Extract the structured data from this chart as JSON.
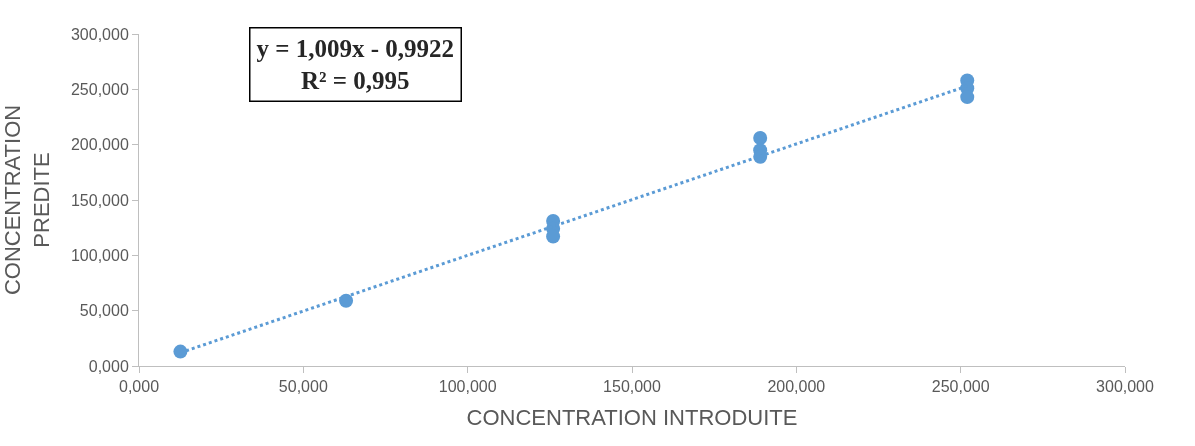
{
  "chart_data": {
    "type": "scatter",
    "xlabel": "CONCENTRATION INTRODUITE",
    "ylabel": "CONCENTRATION\nPREDITE",
    "annotations": [
      "y = 1,009x - 0,9922\nR² = 0,995"
    ],
    "series": [
      {
        "color": "#5b9bd5",
        "marker": "circle",
        "x": [
          12.6,
          63,
          126,
          126,
          126,
          189,
          189,
          189,
          252,
          252,
          252
        ],
        "values": [
          13,
          59,
          131,
          124,
          117,
          206,
          195,
          189,
          258,
          251,
          243
        ]
      },
      {
        "type": "line",
        "color": "#5b9bd5",
        "line_style": "dotted",
        "marker": "none",
        "x": [
          12.6,
          252
        ],
        "values": [
          12,
          253
        ]
      }
    ],
    "xlim": [
      0,
      300
    ],
    "ylim": [
      0,
      300
    ],
    "xticks": [
      {
        "value": 0,
        "label": "0,000"
      },
      {
        "value": 50,
        "label": "50,000"
      },
      {
        "value": 100,
        "label": "100,000"
      },
      {
        "value": 150,
        "label": "150,000"
      },
      {
        "value": 200,
        "label": "200,000"
      },
      {
        "value": 250,
        "label": "250,000"
      },
      {
        "value": 300,
        "label": "300,000"
      }
    ],
    "yticks": [
      {
        "value": 0,
        "label": "0,000"
      },
      {
        "value": 50,
        "label": "50,000"
      },
      {
        "value": 100,
        "label": "100,000"
      },
      {
        "value": 150,
        "label": "150,000"
      },
      {
        "value": 200,
        "label": "200,000"
      },
      {
        "value": 250,
        "label": "250,000"
      },
      {
        "value": 300,
        "label": "300,000"
      }
    ],
    "legend": false
  }
}
